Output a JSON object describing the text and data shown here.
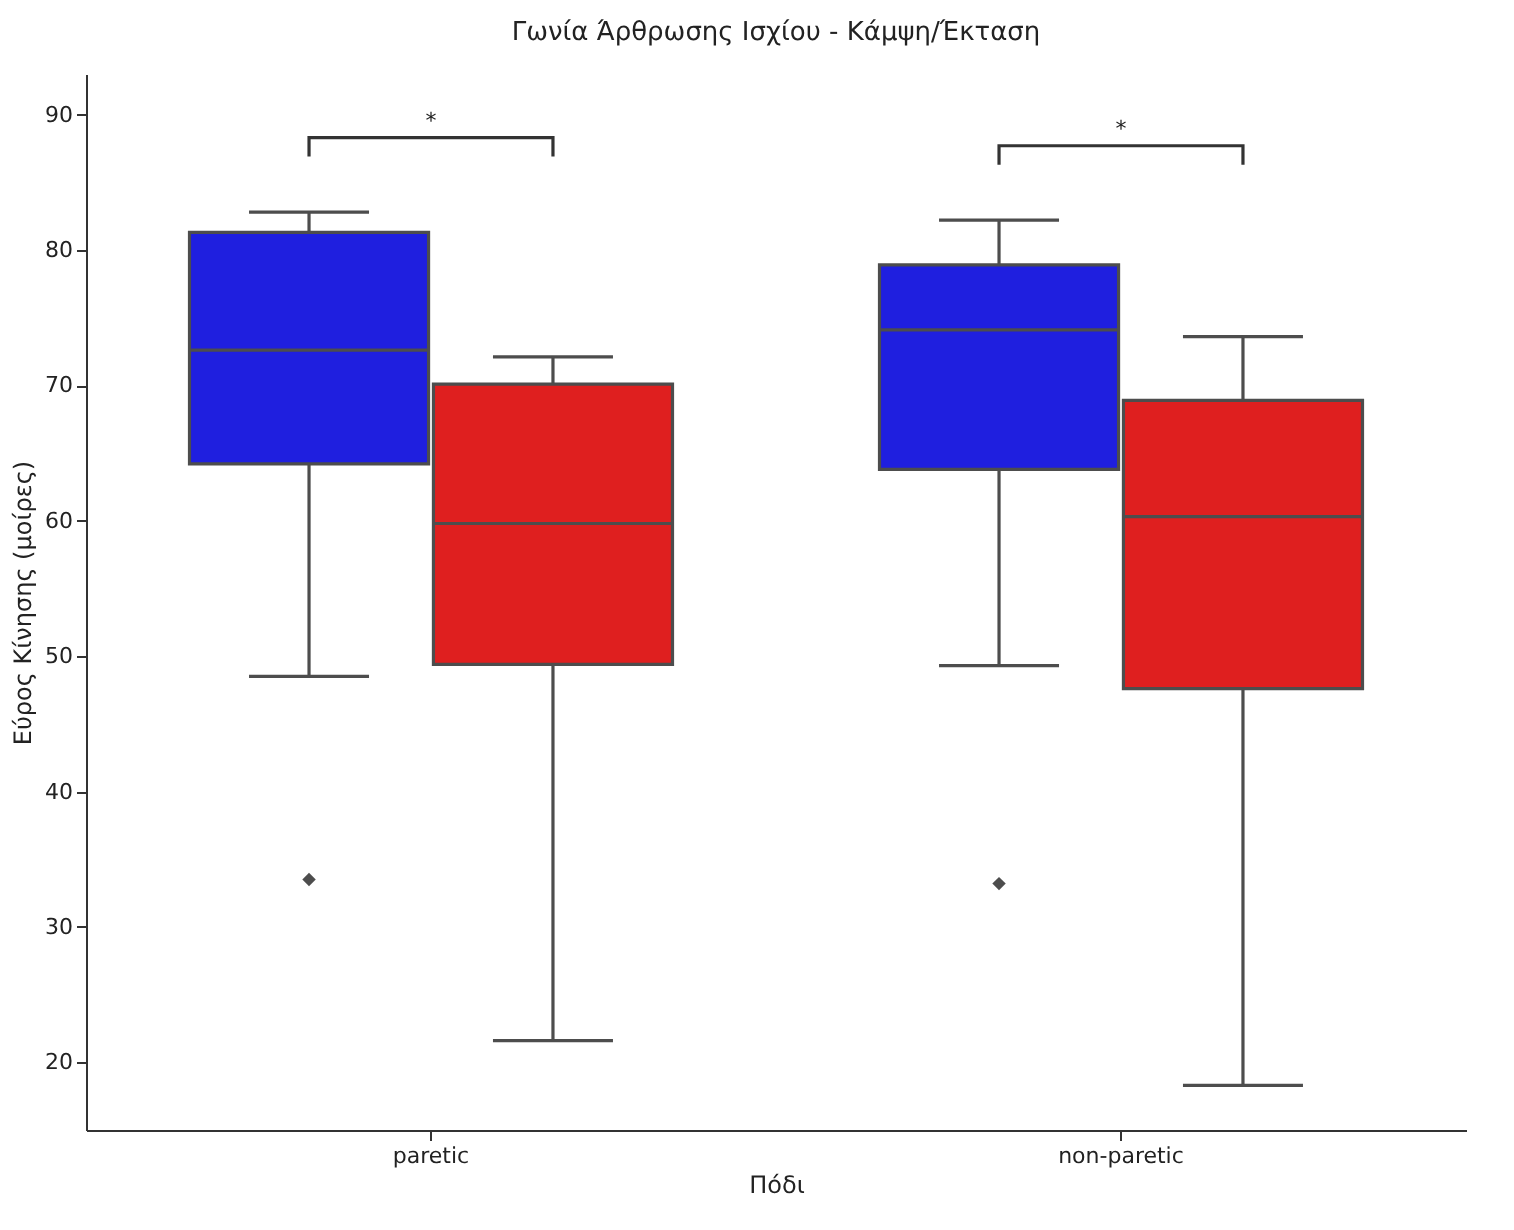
{
  "chart_data": {
    "type": "box",
    "title": "Γωνία Άρθρωσης Ισχίου - Κάμψη/Έκταση",
    "xlabel": "Πόδι",
    "ylabel": "Εύρος Κίνησης (μοίρες)",
    "categories": [
      "paretic",
      "non-paretic"
    ],
    "series": [
      {
        "color": "#1f1fdf",
        "boxes": [
          {
            "low": 48.5,
            "q1": 64.2,
            "median": 72.6,
            "q3": 81.3,
            "high": 82.8,
            "outliers": [
              33.5
            ]
          },
          {
            "low": 49.3,
            "q1": 63.8,
            "median": 74.1,
            "q3": 78.9,
            "high": 82.2,
            "outliers": [
              33.2
            ]
          }
        ]
      },
      {
        "color": "#df1f1f",
        "boxes": [
          {
            "low": 21.6,
            "q1": 49.4,
            "median": 59.8,
            "q3": 70.1,
            "high": 72.1
          },
          {
            "low": 18.3,
            "q1": 47.6,
            "median": 60.3,
            "q3": 68.9,
            "high": 73.6
          }
        ]
      }
    ],
    "ylim": [
      15,
      93
    ],
    "yticks": [
      20,
      30,
      40,
      50,
      60,
      70,
      80,
      90
    ],
    "grid": false,
    "legend": false,
    "marker": "diamond",
    "annotations": [
      "*",
      "*"
    ]
  }
}
